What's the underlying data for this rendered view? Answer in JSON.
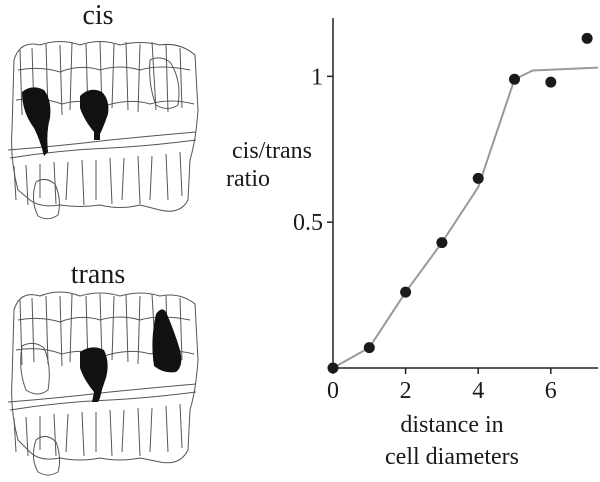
{
  "panels": {
    "top_label": "cis",
    "bottom_label": "trans"
  },
  "chart_data": {
    "type": "scatter",
    "ylabel_line1": "cis/trans",
    "ylabel_line2": "ratio",
    "xlabel_line1": "distance in",
    "xlabel_line2": "cell diameters",
    "xlim": [
      0,
      7.3
    ],
    "ylim": [
      0,
      1.2
    ],
    "x_ticks": [
      0,
      2,
      4,
      6
    ],
    "y_ticks": [
      0.5,
      1
    ],
    "x_tick_labels": [
      "0",
      "2",
      "4",
      "6"
    ],
    "y_tick_labels": [
      "0.5",
      "1"
    ],
    "points": [
      {
        "x": 0,
        "y": 0.0
      },
      {
        "x": 1,
        "y": 0.07
      },
      {
        "x": 2,
        "y": 0.26
      },
      {
        "x": 3,
        "y": 0.43
      },
      {
        "x": 4,
        "y": 0.65
      },
      {
        "x": 5,
        "y": 0.99
      },
      {
        "x": 6,
        "y": 0.98
      },
      {
        "x": 7,
        "y": 1.13
      }
    ],
    "fit_curve": [
      {
        "x": 0,
        "y": 0.0
      },
      {
        "x": 1,
        "y": 0.07
      },
      {
        "x": 2,
        "y": 0.26
      },
      {
        "x": 3,
        "y": 0.43
      },
      {
        "x": 4,
        "y": 0.62
      },
      {
        "x": 5,
        "y": 0.99
      },
      {
        "x": 5.5,
        "y": 1.02
      },
      {
        "x": 7.3,
        "y": 1.03
      }
    ],
    "point_color": "#1a1a1a",
    "line_color": "#999999"
  }
}
